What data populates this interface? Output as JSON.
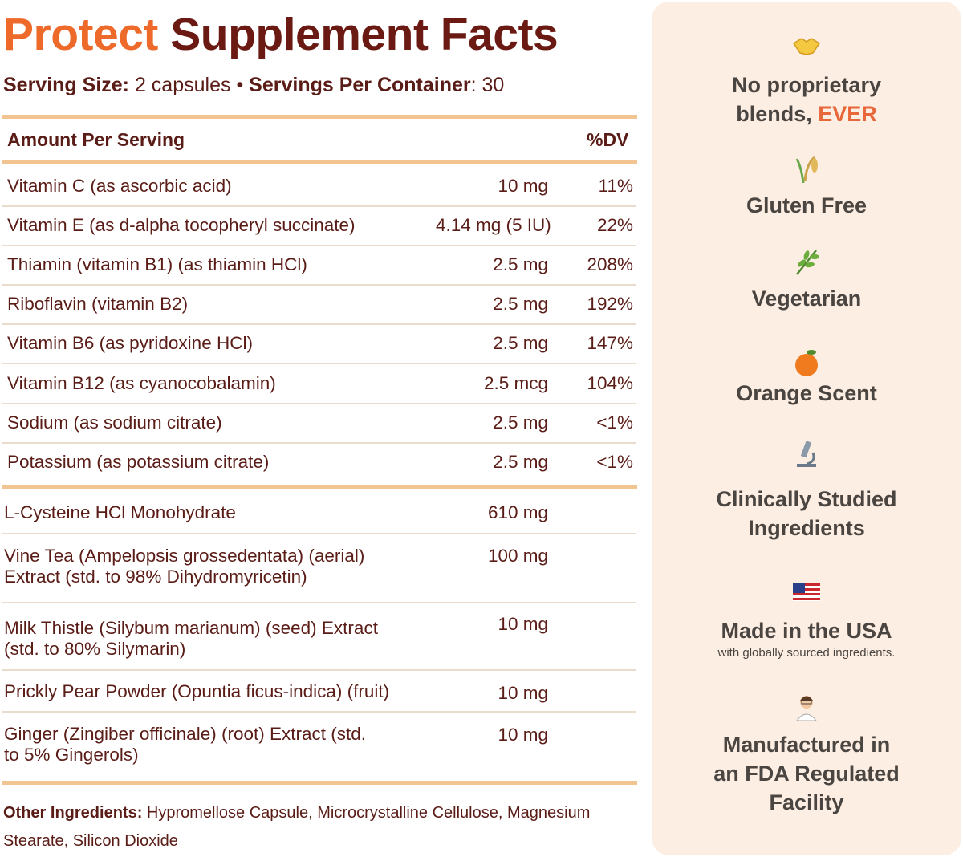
{
  "title": {
    "brand": "Protect",
    "rest": "Supplement Facts"
  },
  "serving": {
    "size_label": "Serving Size:",
    "size_value": "2 capsules",
    "separator": "•",
    "per_container_label": "Servings Per Container",
    "per_container_value": ": 30"
  },
  "table": {
    "header": {
      "amount": "Amount Per Serving",
      "dv": "%DV"
    },
    "vitamins": [
      {
        "name": "Vitamin C (as ascorbic acid)",
        "amount": "10 mg",
        "dv": "11%"
      },
      {
        "name": "Vitamin E (as d-alpha tocopheryl succinate)",
        "amount": "4.14 mg (5 IU)",
        "dv": "22%"
      },
      {
        "name": "Thiamin (vitamin B1) (as thiamin HCl)",
        "amount": "2.5 mg",
        "dv": "208%"
      },
      {
        "name": "Riboflavin (vitamin B2)",
        "amount": "2.5 mg",
        "dv": "192%"
      },
      {
        "name": "Vitamin B6 (as pyridoxine HCl)",
        "amount": "2.5 mg",
        "dv": "147%"
      },
      {
        "name": "Vitamin B12 (as cyanocobalamin)",
        "amount": "2.5 mcg",
        "dv": "104%"
      },
      {
        "name": "Sodium (as sodium citrate)",
        "amount": "2.5 mg",
        "dv": "<1%"
      },
      {
        "name": "Potassium (as potassium citrate)",
        "amount": "2.5 mg",
        "dv": "<1%"
      }
    ],
    "others": [
      {
        "line1": "L-Cysteine HCl Monohydrate",
        "line2": "",
        "amount": "610 mg"
      },
      {
        "line1": "Vine Tea (Ampelopsis grossedentata) (aerial)",
        "line2": "Extract (std. to 98% Dihydromyricetin)",
        "amount": "100 mg"
      },
      {
        "line1": "Milk Thistle (Silybum marianum) (seed) Extract",
        "line2": "(std. to 80% Silymarin)",
        "amount": "10 mg"
      },
      {
        "line1": "Prickly Pear Powder (Opuntia ficus-indica) (fruit)",
        "line2": "",
        "amount": "10 mg"
      },
      {
        "line1": "Ginger (Zingiber officinale) (root) Extract (std.",
        "line2": "to 5% Gingerols)",
        "amount": "10 mg"
      }
    ]
  },
  "other_ingredients": {
    "label": "Other Ingredients:",
    "value": " Hypromellose Capsule, Microcrystalline Cellulose, Magnesium Stearate, Silicon Dioxide"
  },
  "features": [
    {
      "icon": "handshake-icon",
      "line1": "No proprietary",
      "line2": "blends, ",
      "highlight": "EVER"
    },
    {
      "icon": "rice-stalk-icon",
      "line1": "Gluten Free"
    },
    {
      "icon": "herb-icon",
      "line1": "Vegetarian"
    },
    {
      "icon": "orange-icon",
      "line1": "Orange Scent"
    },
    {
      "icon": "microscope-icon",
      "line1": "Clinically Studied",
      "line2": "Ingredients"
    },
    {
      "icon": "us-flag-icon",
      "line1": "Made in the USA",
      "sub": "with globally sourced ingredients."
    },
    {
      "icon": "scientist-icon",
      "line1": "Manufactured in",
      "line2": "an FDA Regulated",
      "line3": "Facility"
    }
  ],
  "colors": {
    "brand_orange": "#ee6a2a",
    "dark_brown": "#6a1a12",
    "divider": "#f2c491",
    "panel_bg": "#fdeee3"
  }
}
